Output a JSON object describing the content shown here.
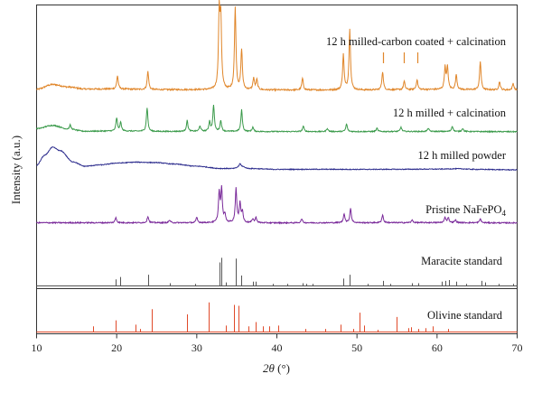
{
  "chart_data": {
    "type": "line",
    "xlabel": "2θ (°)",
    "xlabel_symbol": "2θ",
    "xlabel_unit": " (°)",
    "ylabel": "Intensity (a.u.)",
    "xlim": [
      10,
      70
    ],
    "x_ticks": [
      10,
      20,
      30,
      40,
      50,
      60,
      70
    ],
    "grid": false,
    "series": [
      {
        "name": "12 h milled-carbon coated + calcination",
        "color": "#e0862a",
        "kind": "profile",
        "background": [
          [
            10,
            0.6
          ],
          [
            12,
            3.5
          ],
          [
            14,
            2.0
          ],
          [
            16,
            0.8
          ],
          [
            20,
            0.8
          ],
          [
            25,
            0.4
          ],
          [
            30,
            0.4
          ],
          [
            40,
            0.2
          ],
          [
            50,
            0.2
          ],
          [
            60,
            0.5
          ],
          [
            70,
            0.2
          ]
        ],
        "noise": 0.45,
        "peaks": [
          [
            20.1,
            8
          ],
          [
            23.9,
            11
          ],
          [
            32.8,
            44
          ],
          [
            33.0,
            40
          ],
          [
            34.8,
            49
          ],
          [
            35.6,
            24
          ],
          [
            37.1,
            7
          ],
          [
            37.5,
            6
          ],
          [
            43.2,
            7
          ],
          [
            48.3,
            21
          ],
          [
            49.1,
            36
          ],
          [
            53.2,
            11
          ],
          [
            55.9,
            5
          ],
          [
            57.5,
            6
          ],
          [
            61.0,
            13
          ],
          [
            61.3,
            13
          ],
          [
            62.4,
            9
          ],
          [
            65.4,
            17
          ],
          [
            67.8,
            5
          ],
          [
            69.5,
            4
          ]
        ]
      },
      {
        "name": "12 h milled + calcination",
        "color": "#3a9a4a",
        "kind": "profile",
        "background": [
          [
            10,
            3.0
          ],
          [
            12,
            6.0
          ],
          [
            14,
            2.5
          ],
          [
            16,
            0.6
          ],
          [
            20,
            0.8
          ],
          [
            25,
            0.4
          ],
          [
            30,
            0.5
          ],
          [
            40,
            0.3
          ],
          [
            50,
            0.3
          ],
          [
            60,
            0.4
          ],
          [
            70,
            0.2
          ]
        ],
        "noise": 0.5,
        "peaks": [
          [
            14.2,
            4
          ],
          [
            20.0,
            12
          ],
          [
            20.5,
            8
          ],
          [
            23.8,
            22
          ],
          [
            28.8,
            10
          ],
          [
            30.4,
            5
          ],
          [
            31.6,
            9
          ],
          [
            32.1,
            24
          ],
          [
            33.0,
            10
          ],
          [
            35.6,
            20
          ],
          [
            37.0,
            4
          ],
          [
            43.3,
            5
          ],
          [
            46.3,
            3
          ],
          [
            48.7,
            7
          ],
          [
            52.5,
            3
          ],
          [
            55.5,
            4
          ],
          [
            58.9,
            3
          ],
          [
            61.9,
            5
          ],
          [
            63.2,
            3
          ]
        ]
      },
      {
        "name": "12 h milled powder",
        "color": "#2e2e8e",
        "kind": "profile",
        "background": [
          [
            10,
            6.0
          ],
          [
            11,
            17.0
          ],
          [
            12,
            26.0
          ],
          [
            13,
            22.0
          ],
          [
            14.5,
            10.0
          ],
          [
            16,
            5.0
          ],
          [
            18,
            6.5
          ],
          [
            20,
            8.5
          ],
          [
            22.5,
            9.5
          ],
          [
            25,
            9.0
          ],
          [
            27,
            7.5
          ],
          [
            30,
            5.0
          ],
          [
            33,
            2.5
          ],
          [
            34.6,
            2.5
          ],
          [
            35.5,
            5.0
          ],
          [
            36.5,
            2.5
          ],
          [
            40,
            1.5
          ],
          [
            45,
            1.6
          ],
          [
            50,
            1.5
          ],
          [
            55,
            1.6
          ],
          [
            60,
            1.8
          ],
          [
            62.5,
            2.2
          ],
          [
            65,
            1.5
          ],
          [
            70,
            1.0
          ]
        ],
        "noise": 0.45,
        "peaks": [
          [
            35.4,
            3
          ]
        ]
      },
      {
        "name": "Pristine NaFePO4",
        "label_main": "Pristine NaFePO",
        "label_sub": "4",
        "color": "#7a2a9a",
        "kind": "profile",
        "background": [
          [
            10,
            0.3
          ],
          [
            20,
            0.3
          ],
          [
            30,
            0.3
          ],
          [
            40,
            0.2
          ],
          [
            50,
            0.3
          ],
          [
            60,
            0.4
          ],
          [
            70,
            0.2
          ]
        ],
        "noise": 0.45,
        "peaks": [
          [
            19.9,
            4
          ],
          [
            23.9,
            5
          ],
          [
            26.6,
            2
          ],
          [
            30.0,
            4
          ],
          [
            32.8,
            23
          ],
          [
            33.1,
            25
          ],
          [
            33.5,
            6
          ],
          [
            34.9,
            26
          ],
          [
            35.4,
            15
          ],
          [
            35.7,
            8
          ],
          [
            37.0,
            3
          ],
          [
            37.4,
            4
          ],
          [
            43.1,
            3
          ],
          [
            48.4,
            7
          ],
          [
            49.2,
            11
          ],
          [
            53.2,
            6
          ],
          [
            56.9,
            2
          ],
          [
            61.0,
            4
          ],
          [
            61.4,
            4
          ],
          [
            62.3,
            2
          ],
          [
            65.4,
            3
          ]
        ]
      },
      {
        "name": "Maracite standard",
        "color": "#555555",
        "kind": "sticks",
        "sticks": [
          [
            19.9,
            8
          ],
          [
            20.4,
            11
          ],
          [
            23.9,
            14
          ],
          [
            26.6,
            3
          ],
          [
            29.8,
            2
          ],
          [
            32.8,
            30
          ],
          [
            33.1,
            36
          ],
          [
            33.6,
            4
          ],
          [
            34.9,
            35
          ],
          [
            35.5,
            13
          ],
          [
            37.0,
            5
          ],
          [
            37.4,
            5
          ],
          [
            39.5,
            2
          ],
          [
            41.3,
            2
          ],
          [
            43.2,
            3
          ],
          [
            43.7,
            2
          ],
          [
            44.5,
            2
          ],
          [
            48.3,
            9
          ],
          [
            49.1,
            14
          ],
          [
            51.3,
            2
          ],
          [
            53.3,
            6
          ],
          [
            54.2,
            2
          ],
          [
            56.9,
            3
          ],
          [
            57.6,
            3
          ],
          [
            60.6,
            5
          ],
          [
            61.0,
            6
          ],
          [
            61.5,
            7
          ],
          [
            62.4,
            5
          ],
          [
            63.6,
            2
          ],
          [
            65.5,
            6
          ],
          [
            66.0,
            4
          ],
          [
            67.7,
            2
          ],
          [
            69.5,
            2
          ]
        ]
      },
      {
        "name": "Olivine standard",
        "color": "#e04a2a",
        "kind": "sticks",
        "sticks": [
          [
            17.0,
            6
          ],
          [
            19.9,
            13
          ],
          [
            22.3,
            8
          ],
          [
            22.9,
            3
          ],
          [
            24.4,
            26
          ],
          [
            28.8,
            20
          ],
          [
            31.5,
            34
          ],
          [
            33.6,
            7
          ],
          [
            34.6,
            31
          ],
          [
            35.2,
            30
          ],
          [
            36.4,
            6
          ],
          [
            37.3,
            11
          ],
          [
            38.2,
            6
          ],
          [
            39.0,
            6
          ],
          [
            40.2,
            7
          ],
          [
            43.5,
            3
          ],
          [
            46.0,
            3
          ],
          [
            48.0,
            8
          ],
          [
            49.5,
            3
          ],
          [
            50.3,
            22
          ],
          [
            50.9,
            7
          ],
          [
            52.6,
            2
          ],
          [
            54.9,
            17
          ],
          [
            56.4,
            4
          ],
          [
            56.7,
            5
          ],
          [
            57.6,
            3
          ],
          [
            58.5,
            4
          ],
          [
            59.5,
            6
          ],
          [
            61.4,
            3
          ]
        ]
      }
    ],
    "reference_marks": [
      {
        "series": "12 h milled-carbon coated + calcination",
        "x": 53.2,
        "color": "#e0862a"
      },
      {
        "series": "12 h milled-carbon coated + calcination",
        "x": 55.8,
        "color": "#e0862a"
      },
      {
        "series": "12 h milled-carbon coated + calcination",
        "x": 57.5,
        "color": "#e0862a"
      }
    ]
  }
}
